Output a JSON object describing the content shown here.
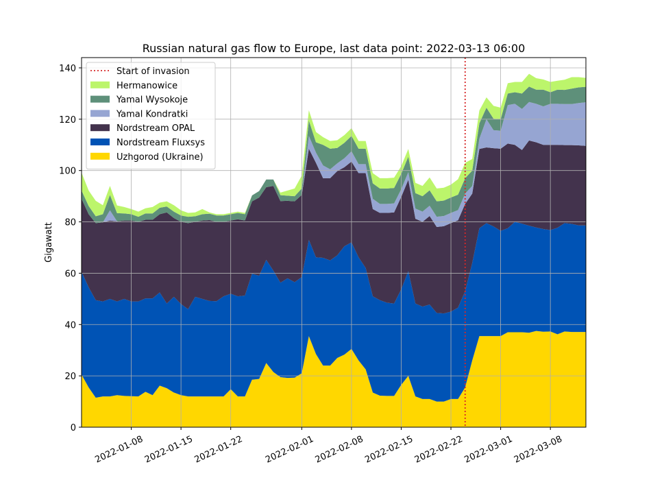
{
  "chart_data": {
    "type": "area",
    "stacked": true,
    "title": "Russian natural gas flow to Europe, last data point: 2022-03-13 06:00",
    "xlabel": "",
    "ylabel": "Gigawatt",
    "xlim": [
      "2022-01-01",
      "2022-03-13"
    ],
    "ylim": [
      0,
      144
    ],
    "grid": true,
    "legend_position": "top-left",
    "x_ticks": [
      "2022-01-08",
      "2022-01-15",
      "2022-01-22",
      "2022-02-01",
      "2022-02-08",
      "2022-02-15",
      "2022-02-22",
      "2022-03-01",
      "2022-03-08"
    ],
    "y_ticks": [
      0,
      20,
      40,
      60,
      80,
      100,
      120,
      140
    ],
    "x": [
      "2022-01-01",
      "2022-01-02",
      "2022-01-03",
      "2022-01-04",
      "2022-01-05",
      "2022-01-06",
      "2022-01-07",
      "2022-01-08",
      "2022-01-09",
      "2022-01-10",
      "2022-01-11",
      "2022-01-12",
      "2022-01-13",
      "2022-01-14",
      "2022-01-15",
      "2022-01-16",
      "2022-01-17",
      "2022-01-18",
      "2022-01-19",
      "2022-01-20",
      "2022-01-21",
      "2022-01-22",
      "2022-01-23",
      "2022-01-24",
      "2022-01-25",
      "2022-01-26",
      "2022-01-27",
      "2022-01-28",
      "2022-01-29",
      "2022-01-30",
      "2022-01-31",
      "2022-02-01",
      "2022-02-02",
      "2022-02-03",
      "2022-02-04",
      "2022-02-05",
      "2022-02-06",
      "2022-02-07",
      "2022-02-08",
      "2022-02-09",
      "2022-02-10",
      "2022-02-11",
      "2022-02-12",
      "2022-02-13",
      "2022-02-14",
      "2022-02-15",
      "2022-02-16",
      "2022-02-17",
      "2022-02-18",
      "2022-02-19",
      "2022-02-20",
      "2022-02-21",
      "2022-02-22",
      "2022-02-23",
      "2022-02-24",
      "2022-02-25",
      "2022-02-26",
      "2022-02-27",
      "2022-02-28",
      "2022-03-01",
      "2022-03-02",
      "2022-03-03",
      "2022-03-04",
      "2022-03-05",
      "2022-03-06",
      "2022-03-07",
      "2022-03-08",
      "2022-03-09",
      "2022-03-10",
      "2022-03-11",
      "2022-03-12",
      "2022-03-13"
    ],
    "series": [
      {
        "name": "Uzhgorod (Ukraine)",
        "color": "#ffd700",
        "values": [
          20.5,
          15.5,
          11.5,
          12,
          12,
          12.5,
          12.2,
          12.1,
          12,
          13.8,
          12.5,
          16.2,
          15.2,
          13.5,
          12.5,
          12,
          12,
          12,
          12,
          12,
          12,
          14.8,
          12,
          12,
          18.5,
          18.8,
          25,
          21.5,
          19.5,
          19.2,
          19.3,
          21,
          35.5,
          28.5,
          24,
          24,
          27,
          28.3,
          30.5,
          26,
          22.5,
          13.5,
          12.3,
          12.2,
          12.2,
          16.5,
          20,
          12,
          11,
          11,
          10,
          10,
          11,
          11,
          15.5,
          26,
          35.5,
          35.5,
          35.5,
          35.5,
          37,
          37,
          37,
          36.8,
          37.5,
          37.2,
          37.3,
          36.2,
          37.3,
          37.1,
          37.1,
          37.1
        ]
      },
      {
        "name": "Nordstream Fluxsys",
        "color": "#0053b5",
        "values": [
          40,
          39,
          38,
          37,
          38,
          36.5,
          37.8,
          36.9,
          37,
          36.4,
          37.7,
          36.3,
          33,
          37.3,
          35.5,
          34,
          38.8,
          38,
          37.2,
          37.1,
          39,
          37.2,
          39,
          39.3,
          41.3,
          40.2,
          40.2,
          39.5,
          36.8,
          38.8,
          37.2,
          37.5,
          37.5,
          37.7,
          42,
          41,
          40,
          42.2,
          41.5,
          40.2,
          39.5,
          37.5,
          37.2,
          36.3,
          36,
          37.2,
          40.8,
          36.2,
          36,
          36.8,
          34.5,
          34.3,
          34,
          35.6,
          37.5,
          38,
          42,
          44,
          42.7,
          41,
          40.5,
          43,
          42.3,
          41.7,
          40.3,
          40,
          39.5,
          41.5,
          42.2,
          42.1,
          41.5,
          41.5
        ]
      },
      {
        "name": "Nordstream OPAL",
        "color": "#43334d",
        "values": [
          28.5,
          28.5,
          30,
          30.8,
          30.5,
          31.2,
          30.5,
          31.5,
          31,
          30.6,
          30.6,
          30.5,
          35.5,
          30.7,
          32,
          33.5,
          29.2,
          30.5,
          31.5,
          30.9,
          29,
          28.5,
          30,
          29.2,
          28.2,
          30.5,
          28.3,
          33,
          31.8,
          30.2,
          31.5,
          32,
          35.5,
          36.8,
          31,
          32,
          32.8,
          30.8,
          31.5,
          32.8,
          37,
          34,
          34,
          35,
          35.5,
          36,
          35.6,
          33,
          33,
          34.5,
          33.5,
          34,
          34.5,
          34,
          34,
          27,
          30.9,
          29.5,
          30.5,
          32,
          33,
          30,
          28.7,
          33.2,
          33.2,
          32.8,
          33.2,
          32.3,
          30.4,
          30.7,
          31.2,
          31
        ]
      },
      {
        "name": "Yamal Kondratki",
        "color": "#96a5d2",
        "values": [
          0,
          0,
          0,
          0,
          4,
          0,
          0,
          0,
          0,
          0,
          0,
          0,
          0,
          0,
          0,
          0,
          0,
          0,
          0,
          0,
          0,
          0,
          0,
          0,
          0,
          0,
          0,
          0,
          0,
          0,
          0,
          0,
          5,
          4,
          5,
          3.5,
          3,
          3.5,
          4,
          3.5,
          3.5,
          4,
          3.5,
          3.5,
          3.5,
          3,
          3,
          4,
          4,
          4,
          4,
          4,
          4,
          4,
          4,
          3,
          4,
          11,
          7,
          7,
          15,
          16,
          16,
          15,
          15,
          15,
          16,
          16,
          16,
          16,
          16.5,
          17
        ]
      },
      {
        "name": "Yamal Wysokoje",
        "color": "#5e907a",
        "values": [
          3.2,
          3.2,
          2.7,
          3.2,
          6,
          3.2,
          2.8,
          2.5,
          2,
          2.5,
          2.5,
          2.5,
          2.3,
          2.5,
          2.5,
          2.5,
          2.2,
          2.5,
          2.5,
          2.5,
          2.5,
          2.5,
          2.5,
          2.5,
          2.3,
          2.5,
          3,
          2.5,
          2.3,
          2,
          2,
          2.5,
          6,
          4,
          8,
          8,
          6,
          6,
          6,
          6,
          6,
          6,
          6,
          6,
          6,
          6,
          6,
          6,
          6,
          6,
          6,
          6,
          6,
          6,
          6,
          6,
          6,
          4.5,
          4.5,
          4.5,
          4.5,
          4.5,
          6,
          6,
          5.5,
          6.5,
          4.5,
          5.5,
          5.5,
          6,
          6.1,
          6
        ]
      },
      {
        "name": "Hermanowice",
        "color": "#bcf56b",
        "values": [
          7,
          6,
          6,
          3.5,
          3.5,
          3,
          2.5,
          2,
          2,
          2,
          2.5,
          2,
          2,
          2.5,
          2,
          1.5,
          1.5,
          2,
          0.5,
          0.5,
          0.5,
          0.5,
          0.5,
          0.5,
          0,
          0,
          0,
          0,
          1,
          2,
          3,
          5,
          4,
          4,
          3,
          3,
          3,
          3,
          3,
          3,
          3,
          4,
          4,
          4,
          4,
          3,
          3,
          4,
          4,
          5,
          5,
          5,
          5,
          6,
          6,
          4.5,
          5,
          4,
          5,
          4.5,
          4,
          4,
          4.5,
          5,
          4.5,
          4,
          4,
          3.5,
          4,
          4.5,
          4,
          3.5
        ]
      }
    ],
    "annotations": [
      {
        "type": "vline",
        "x": "2022-02-24",
        "label": "Start of invasion",
        "color": "#d62728",
        "style": "dotted"
      }
    ]
  }
}
